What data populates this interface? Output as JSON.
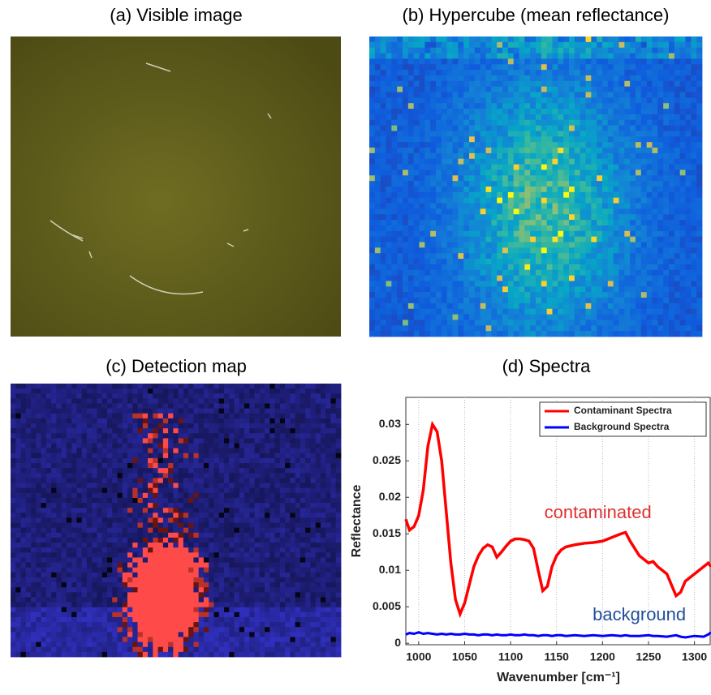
{
  "images": [
    {
      "title": "(a) Visible image"
    },
    {
      "title": "(b) Hypercube (mean reflectance)"
    },
    {
      "title": "(c) Detection map"
    }
  ],
  "chart_data": {
    "type": "line",
    "title": "(d) Spectra",
    "xlabel": "Wavenumber [cm⁻¹]",
    "ylabel": "Reflectance",
    "x": [
      986,
      990,
      995,
      1000,
      1005,
      1010,
      1015,
      1020,
      1025,
      1030,
      1035,
      1040,
      1045,
      1050,
      1055,
      1060,
      1065,
      1070,
      1075,
      1080,
      1085,
      1090,
      1095,
      1100,
      1105,
      1110,
      1115,
      1120,
      1125,
      1130,
      1135,
      1140,
      1145,
      1150,
      1155,
      1160,
      1170,
      1180,
      1190,
      1200,
      1210,
      1220,
      1225,
      1230,
      1240,
      1250,
      1255,
      1260,
      1270,
      1275,
      1280,
      1285,
      1290,
      1300,
      1310,
      1315,
      1318
    ],
    "series": [
      {
        "name": "Contaminant Spectra",
        "color": "#ff0000",
        "values": [
          0.017,
          0.0155,
          0.016,
          0.0175,
          0.021,
          0.027,
          0.03,
          0.029,
          0.025,
          0.018,
          0.011,
          0.006,
          0.004,
          0.0055,
          0.008,
          0.0105,
          0.012,
          0.013,
          0.0135,
          0.0132,
          0.0118,
          0.0125,
          0.0133,
          0.014,
          0.0143,
          0.0143,
          0.0142,
          0.014,
          0.013,
          0.01,
          0.0072,
          0.0078,
          0.0105,
          0.012,
          0.0128,
          0.0132,
          0.0135,
          0.0137,
          0.0138,
          0.014,
          0.0145,
          0.015,
          0.0152,
          0.014,
          0.012,
          0.011,
          0.0112,
          0.0105,
          0.0095,
          0.008,
          0.0065,
          0.007,
          0.0085,
          0.0095,
          0.0105,
          0.011,
          0.0105
        ]
      },
      {
        "name": "Background Spectra",
        "color": "#0000ff",
        "values": [
          0.0012,
          0.0014,
          0.0013,
          0.0015,
          0.0013,
          0.0014,
          0.0013,
          0.0012,
          0.0013,
          0.0012,
          0.0013,
          0.0012,
          0.0012,
          0.0013,
          0.0012,
          0.0012,
          0.0011,
          0.0012,
          0.0012,
          0.0011,
          0.0012,
          0.0011,
          0.0011,
          0.0012,
          0.0011,
          0.0011,
          0.0012,
          0.0011,
          0.0011,
          0.001,
          0.0011,
          0.0011,
          0.001,
          0.0011,
          0.0011,
          0.001,
          0.0011,
          0.001,
          0.0011,
          0.001,
          0.0011,
          0.001,
          0.0011,
          0.001,
          0.001,
          0.0011,
          0.001,
          0.001,
          0.0009,
          0.001,
          0.0011,
          0.0009,
          0.0008,
          0.001,
          0.0009,
          0.0012,
          0.0015
        ]
      }
    ],
    "annotations": [
      {
        "text": "contaminated",
        "x": 1195,
        "y": 0.0178,
        "color": "#e03030"
      },
      {
        "text": "background",
        "x": 1240,
        "y": 0.0038,
        "color": "#1f4e9c"
      }
    ],
    "xlim": [
      986,
      1318
    ],
    "ylim": [
      -0.0002,
      0.0337
    ],
    "xticks": [
      1000,
      1050,
      1100,
      1150,
      1200,
      1250,
      1300
    ],
    "yticks": [
      0,
      0.005,
      0.01,
      0.015,
      0.02,
      0.025,
      0.03
    ],
    "grid": true,
    "legend": "upper right"
  }
}
